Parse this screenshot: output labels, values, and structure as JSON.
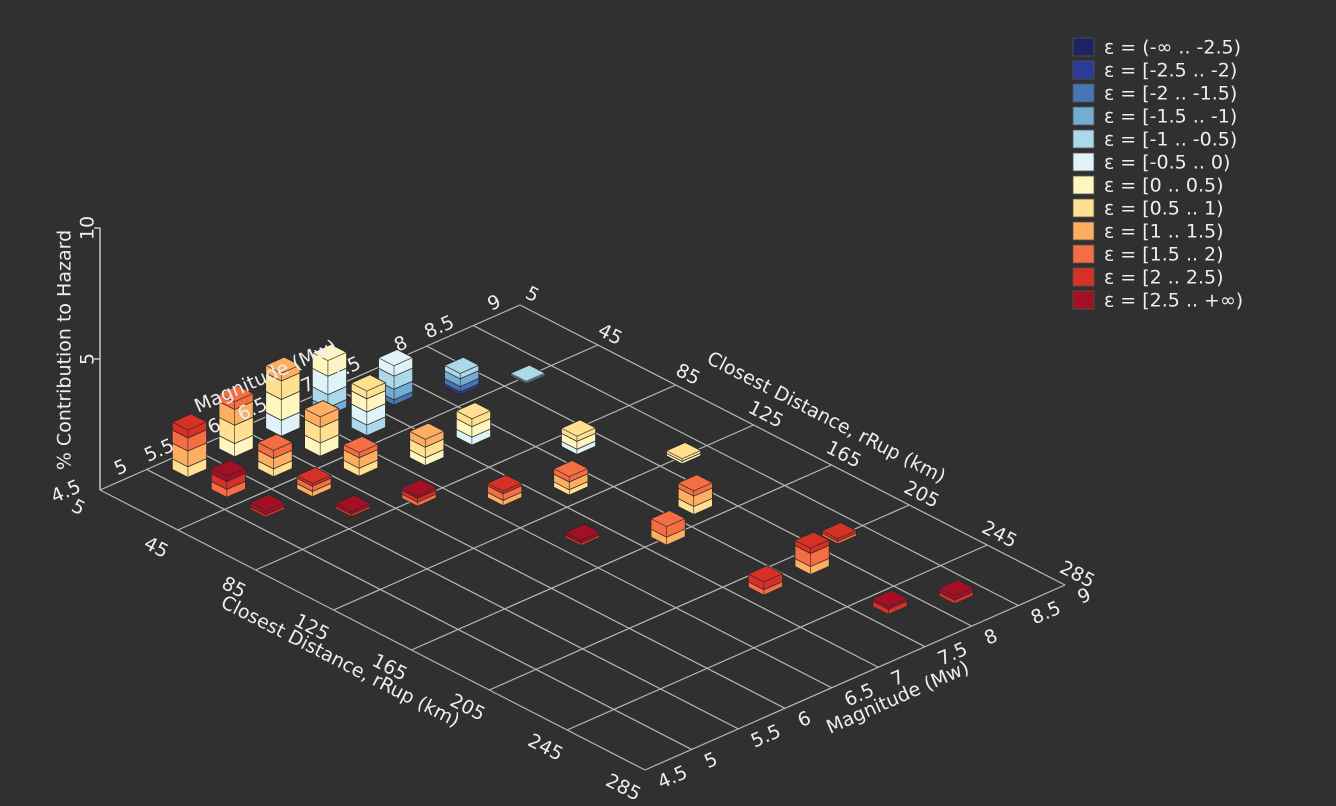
{
  "chart_data": {
    "type": "bar3d",
    "xlabel": "Closest Distance, rRup (km)",
    "ylabel": "Magnitude (Mw)",
    "zlabel": "% Contribution to Hazard",
    "xlim": [
      5,
      285
    ],
    "xticks": [
      5,
      45,
      85,
      125,
      165,
      205,
      245,
      285
    ],
    "ylim": [
      4.5,
      9
    ],
    "yticks": [
      4.5,
      5,
      5.5,
      6,
      6.5,
      7,
      7.5,
      8,
      8.5,
      9
    ],
    "zlim": [
      0,
      10
    ],
    "zticks": [
      5,
      10
    ],
    "grid": true,
    "x": [
      15,
      35,
      55,
      15,
      35,
      55,
      75,
      15,
      35,
      55,
      85,
      15,
      35,
      65,
      105,
      145,
      25,
      65,
      115,
      165,
      215,
      35,
      95,
      155,
      215,
      255,
      45,
      125,
      205,
      265
    ],
    "y": [
      5.25,
      5.25,
      5.25,
      5.75,
      5.75,
      5.75,
      5.75,
      6.25,
      6.25,
      6.25,
      6.25,
      6.75,
      6.75,
      6.75,
      6.75,
      6.75,
      7.25,
      7.25,
      7.25,
      7.25,
      7.25,
      7.75,
      7.75,
      7.75,
      7.75,
      7.75,
      8.25,
      8.25,
      8.25,
      8.25
    ],
    "series": [
      {
        "name": "ε = (-∞ .. -2.5)",
        "color": "#1b2361",
        "values": [
          0,
          0,
          0,
          0,
          0,
          0,
          0,
          0,
          0,
          0,
          0,
          0,
          0,
          0,
          0,
          0,
          0,
          0,
          0,
          0,
          0,
          0,
          0,
          0,
          0,
          0,
          0,
          0,
          0,
          0
        ]
      },
      {
        "name": "ε = [-2.5 .. -2)",
        "color": "#2c3b9b",
        "values": [
          0,
          0,
          0,
          0,
          0,
          0,
          0,
          0,
          0,
          0,
          0,
          0,
          0,
          0,
          0,
          0,
          0,
          0,
          0,
          0,
          0,
          0.1,
          0,
          0,
          0,
          0,
          0,
          0,
          0,
          0
        ]
      },
      {
        "name": "ε = [-2 .. -1.5)",
        "color": "#4575b4",
        "values": [
          0,
          0,
          0,
          0,
          0,
          0,
          0,
          0,
          0,
          0,
          0,
          0,
          0,
          0,
          0,
          0,
          0.2,
          0,
          0,
          0,
          0,
          0.2,
          0,
          0,
          0,
          0,
          0,
          0,
          0,
          0
        ]
      },
      {
        "name": "ε = [-1.5 .. -1)",
        "color": "#74add1",
        "values": [
          0,
          0,
          0,
          0,
          0,
          0,
          0,
          0,
          0,
          0,
          0,
          0.3,
          0,
          0,
          0,
          0,
          0.4,
          0,
          0,
          0,
          0,
          0.3,
          0,
          0,
          0,
          0,
          0.05,
          0,
          0,
          0
        ]
      },
      {
        "name": "ε = [-1 .. -0.5)",
        "color": "#abd9e9",
        "values": [
          0,
          0,
          0,
          0,
          0,
          0,
          0,
          0,
          0,
          0,
          0,
          0.5,
          0.4,
          0,
          0,
          0,
          0.5,
          0,
          0,
          0,
          0,
          0.2,
          0,
          0,
          0,
          0,
          0.05,
          0,
          0,
          0
        ]
      },
      {
        "name": "ε = [-0.5 .. 0)",
        "color": "#e0f3f8",
        "values": [
          0,
          0,
          0,
          0,
          0,
          0,
          0,
          0.6,
          0,
          0,
          0,
          0.7,
          0.5,
          0,
          0,
          0,
          0.4,
          0.3,
          0,
          0,
          0,
          0,
          0.2,
          0,
          0,
          0,
          0,
          0,
          0,
          0
        ]
      },
      {
        "name": "ε = [0 .. 0.5)",
        "color": "#fff5bf",
        "values": [
          0,
          0,
          0,
          0.5,
          0,
          0,
          0,
          0.8,
          0.5,
          0,
          0,
          0.6,
          0.5,
          0.3,
          0,
          0,
          0,
          0.4,
          0,
          0,
          0,
          0,
          0.3,
          0,
          0,
          0,
          0,
          0.1,
          0,
          0
        ]
      },
      {
        "name": "ε = [0.5 .. 1)",
        "color": "#fee090",
        "values": [
          0.4,
          0,
          0,
          0.7,
          0.3,
          0,
          0,
          0.7,
          0.6,
          0.3,
          0,
          0,
          0.3,
          0.4,
          0,
          0,
          0,
          0.3,
          0.2,
          0,
          0,
          0,
          0.2,
          0.3,
          0,
          0,
          0,
          0.1,
          0,
          0
        ]
      },
      {
        "name": "ε = [1 .. 1.5)",
        "color": "#fdae61",
        "values": [
          0.6,
          0,
          0,
          0.6,
          0.4,
          0.2,
          0,
          0.3,
          0.4,
          0.4,
          0,
          0,
          0,
          0.3,
          0.2,
          0,
          0,
          0,
          0.3,
          0.3,
          0,
          0,
          0,
          0.4,
          0.3,
          0,
          0,
          0,
          0,
          0
        ]
      },
      {
        "name": "ε = [1.5 .. 2)",
        "color": "#f46d43",
        "values": [
          0.5,
          0.3,
          0,
          0.3,
          0.3,
          0.2,
          0,
          0,
          0,
          0.2,
          0.15,
          0,
          0,
          0,
          0.25,
          0,
          0,
          0,
          0.2,
          0.4,
          0.2,
          0,
          0,
          0.2,
          0.5,
          0,
          0,
          0,
          0.1,
          0
        ]
      },
      {
        "name": "ε = [2 .. 2.5)",
        "color": "#d73027",
        "values": [
          0.3,
          0.3,
          0.1,
          0,
          0,
          0.1,
          0.1,
          0,
          0,
          0,
          0.15,
          0,
          0,
          0,
          0.1,
          0.1,
          0,
          0,
          0,
          0,
          0.3,
          0,
          0,
          0,
          0.2,
          0.2,
          0,
          0,
          0.1,
          0.15
        ]
      },
      {
        "name": "ε = [2.5 .. +∞)",
        "color": "#a50f26",
        "values": [
          0,
          0.2,
          0.15,
          0,
          0,
          0,
          0.1,
          0,
          0,
          0,
          0.1,
          0,
          0,
          0,
          0,
          0.1,
          0,
          0,
          0,
          0,
          0,
          0,
          0,
          0,
          0,
          0.1,
          0,
          0,
          0,
          0.15
        ]
      }
    ]
  }
}
